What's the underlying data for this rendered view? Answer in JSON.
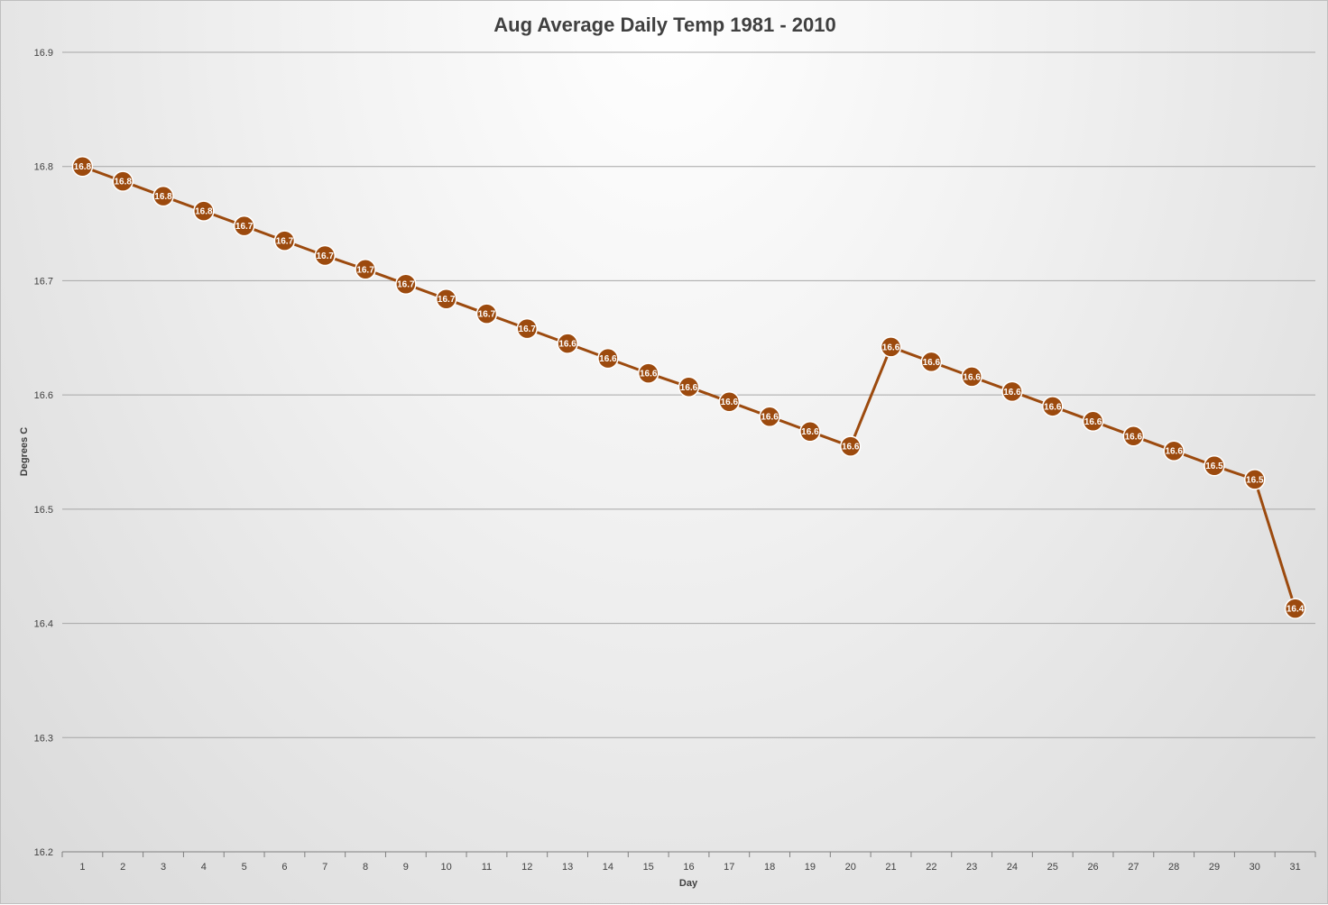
{
  "chart_data": {
    "type": "line",
    "title": "Aug Average Daily Temp 1981 - 2010",
    "xlabel": "Day",
    "ylabel": "Degrees C",
    "ylim": [
      16.2,
      16.9
    ],
    "yticks": [
      "16.2",
      "16.3",
      "16.4",
      "16.5",
      "16.6",
      "16.7",
      "16.8",
      "16.9"
    ],
    "grid": true,
    "legend": "none",
    "colors": {
      "series": "#9c4a0e",
      "marker": "#9c4a0e",
      "label": "#ffffff"
    },
    "categories": [
      "1",
      "2",
      "3",
      "4",
      "5",
      "6",
      "7",
      "8",
      "9",
      "10",
      "11",
      "12",
      "13",
      "14",
      "15",
      "16",
      "17",
      "18",
      "19",
      "20",
      "21",
      "22",
      "23",
      "24",
      "25",
      "26",
      "27",
      "28",
      "29",
      "30",
      "31"
    ],
    "series": [
      {
        "values": [
          16.8,
          16.787,
          16.774,
          16.761,
          16.748,
          16.735,
          16.722,
          16.71,
          16.697,
          16.684,
          16.671,
          16.658,
          16.645,
          16.632,
          16.619,
          16.607,
          16.594,
          16.581,
          16.568,
          16.555,
          16.642,
          16.629,
          16.616,
          16.603,
          16.59,
          16.577,
          16.564,
          16.551,
          16.538,
          16.526,
          16.413
        ],
        "labels": [
          "16.8",
          "16.8",
          "16.8",
          "16.8",
          "16.7",
          "16.7",
          "16.7",
          "16.7",
          "16.7",
          "16.7",
          "16.7",
          "16.7",
          "16.6",
          "16.6",
          "16.6",
          "16.6",
          "16.6",
          "16.6",
          "16.6",
          "16.6",
          "16.6",
          "16.6",
          "16.6",
          "16.6",
          "16.6",
          "16.6",
          "16.6",
          "16.6",
          "16.5",
          "16.5",
          "16.4"
        ]
      }
    ]
  }
}
